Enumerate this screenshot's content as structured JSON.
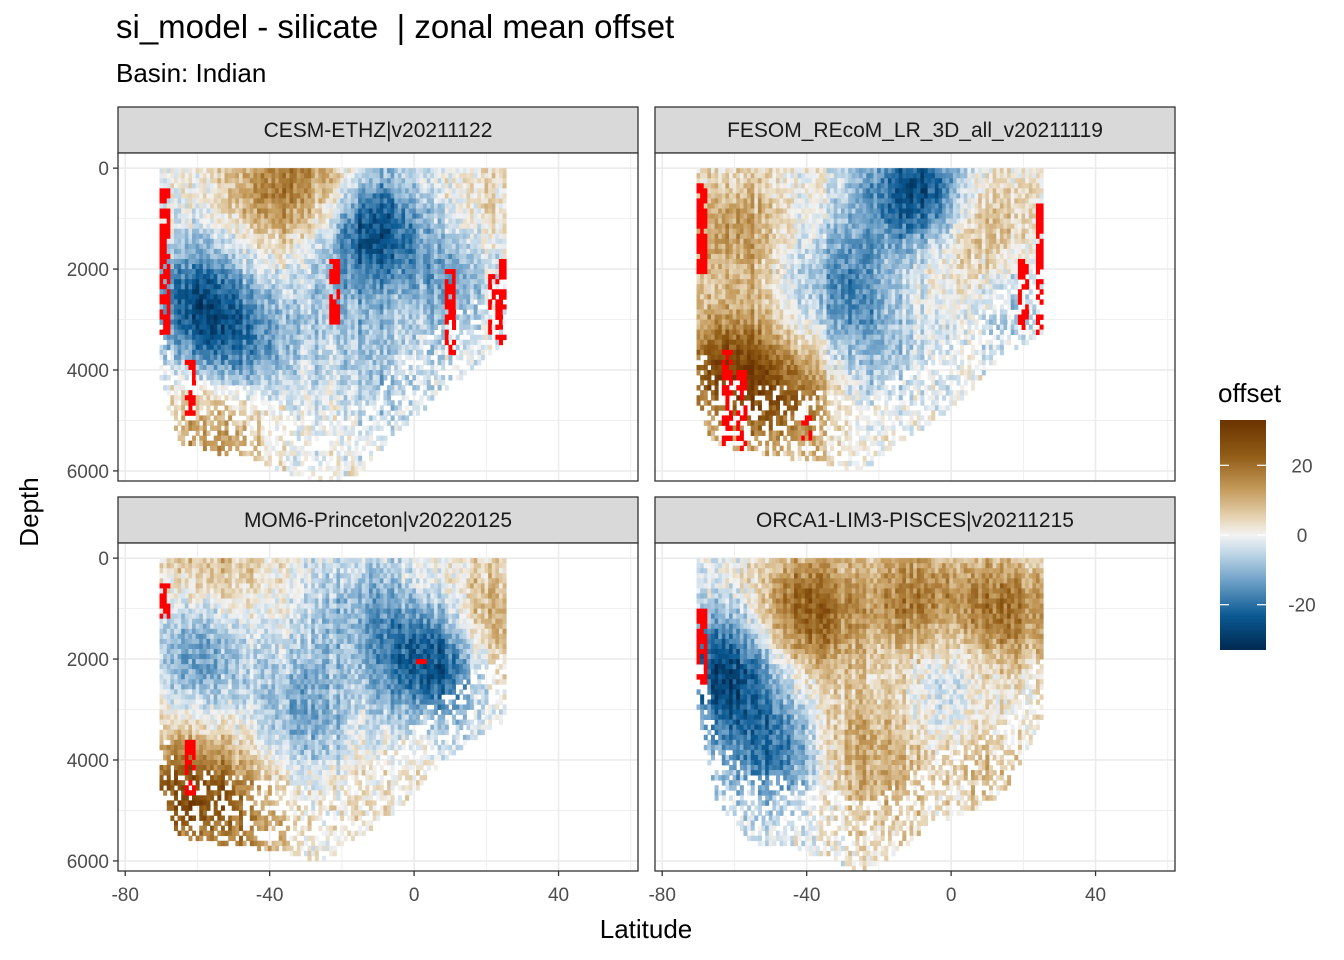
{
  "title": "si_model - silicate  | zonal mean offset",
  "subtitle": "Basin: Indian",
  "chart_data": {
    "type": "heatmap",
    "title": "si_model - silicate  | zonal mean offset",
    "subtitle": "Basin: Indian",
    "xlabel": "Latitude",
    "ylabel": "Depth",
    "xlim": [
      -82,
      62
    ],
    "ylim": [
      6200,
      -300
    ],
    "x_ticks": [
      -80,
      -40,
      0,
      40
    ],
    "y_ticks": [
      0,
      2000,
      4000,
      6000
    ],
    "grid": true,
    "legend": {
      "title": "offset",
      "position": "right",
      "ticks": [
        20,
        0,
        -20
      ],
      "range": [
        -33,
        33
      ],
      "colors": {
        "low": "#00294f",
        "mid": "#f3f3f3",
        "high": "#6b3300",
        "out_of_range": "#ff0000"
      }
    },
    "panels": [
      {
        "name": "CESM-ETHZ|v20211122",
        "lat_range": [
          -70,
          25
        ],
        "bottom_depth": [
          [
            -70,
            4400
          ],
          [
            -65,
            5400
          ],
          [
            -55,
            5600
          ],
          [
            -45,
            5700
          ],
          [
            -35,
            6000
          ],
          [
            -25,
            6200
          ],
          [
            -15,
            6000
          ],
          [
            -5,
            5200
          ],
          [
            5,
            4600
          ],
          [
            15,
            4000
          ],
          [
            25,
            3400
          ]
        ],
        "features": [
          {
            "lat": -40,
            "depth": 300,
            "value": 14
          },
          {
            "lat": -25,
            "depth": 250,
            "value": 12
          },
          {
            "lat": -12,
            "depth": 1100,
            "value": -28
          },
          {
            "lat": -60,
            "depth": 2600,
            "value": -22
          },
          {
            "lat": -48,
            "depth": 3500,
            "value": -15
          },
          {
            "lat": -20,
            "depth": 2800,
            "value": -6
          },
          {
            "lat": 10,
            "depth": 2000,
            "value": -12
          },
          {
            "lat": -55,
            "depth": 5200,
            "value": 16
          },
          {
            "lat": -8,
            "depth": 4200,
            "value": -8
          },
          {
            "lat": 15,
            "depth": 900,
            "value": 6
          }
        ],
        "out_of_range": [
          {
            "lat": -69,
            "depth_range": [
              400,
              3200
            ]
          },
          {
            "lat": -62,
            "depth_range": [
              3800,
              4800
            ]
          },
          {
            "lat": 25,
            "depth_range": [
              1800,
              3400
            ]
          },
          {
            "lat": 22,
            "depth_range": [
              2000,
              3300
            ]
          },
          {
            "lat": 10,
            "depth_range": [
              2000,
              3600
            ]
          },
          {
            "lat": -22,
            "depth_range": [
              1800,
              3000
            ]
          }
        ]
      },
      {
        "name": "FESOM_REcoM_LR_3D_all_v20211119",
        "lat_range": [
          -70,
          25
        ],
        "bottom_depth": [
          [
            -70,
            4800
          ],
          [
            -65,
            5500
          ],
          [
            -55,
            5600
          ],
          [
            -45,
            5700
          ],
          [
            -35,
            5800
          ],
          [
            -25,
            6000
          ],
          [
            -15,
            5400
          ],
          [
            -5,
            5000
          ],
          [
            5,
            4400
          ],
          [
            15,
            3600
          ],
          [
            25,
            3300
          ]
        ],
        "features": [
          {
            "lat": -60,
            "depth": 1200,
            "value": 14
          },
          {
            "lat": -30,
            "depth": 2200,
            "value": -14
          },
          {
            "lat": -10,
            "depth": 500,
            "value": -30
          },
          {
            "lat": 10,
            "depth": 1300,
            "value": 10
          },
          {
            "lat": -5,
            "depth": 1400,
            "value": 6
          },
          {
            "lat": -62,
            "depth": 4000,
            "value": 28
          },
          {
            "lat": -45,
            "depth": 4600,
            "value": 18
          },
          {
            "lat": -20,
            "depth": 3500,
            "value": -8
          },
          {
            "lat": 18,
            "depth": 2500,
            "value": -10
          }
        ],
        "out_of_range": [
          {
            "lat": -62,
            "depth_range": [
              3600,
              5500
            ]
          },
          {
            "lat": -58,
            "depth_range": [
              4000,
              5500
            ]
          },
          {
            "lat": 25,
            "depth_range": [
              700,
              3300
            ]
          },
          {
            "lat": 20,
            "depth_range": [
              1800,
              3100
            ]
          },
          {
            "lat": -69,
            "depth_range": [
              300,
              2000
            ]
          },
          {
            "lat": -40,
            "depth_range": [
              4800,
              5400
            ]
          }
        ]
      },
      {
        "name": "MOM6-Princeton|v20220125",
        "lat_range": [
          -70,
          25
        ],
        "bottom_depth": [
          [
            -70,
            4600
          ],
          [
            -65,
            5500
          ],
          [
            -55,
            5600
          ],
          [
            -45,
            5700
          ],
          [
            -35,
            5800
          ],
          [
            -25,
            6000
          ],
          [
            -15,
            5500
          ],
          [
            -5,
            5000
          ],
          [
            5,
            4200
          ],
          [
            15,
            3600
          ],
          [
            25,
            3200
          ]
        ],
        "features": [
          {
            "lat": -55,
            "depth": 100,
            "value": 10
          },
          {
            "lat": 5,
            "depth": 2000,
            "value": -28
          },
          {
            "lat": 20,
            "depth": 1200,
            "value": 14
          },
          {
            "lat": -60,
            "depth": 1800,
            "value": -14
          },
          {
            "lat": -62,
            "depth": 4600,
            "value": 26
          },
          {
            "lat": -30,
            "depth": 3000,
            "value": -12
          },
          {
            "lat": -15,
            "depth": 1000,
            "value": -10
          },
          {
            "lat": -45,
            "depth": 5200,
            "value": 12
          },
          {
            "lat": -10,
            "depth": 4600,
            "value": 4
          }
        ],
        "out_of_range": [
          {
            "lat": -69,
            "depth_range": [
              500,
              1100
            ]
          },
          {
            "lat": -62,
            "depth_range": [
              3600,
              4600
            ]
          },
          {
            "lat": 2,
            "depth_range": [
              1950,
              2050
            ]
          }
        ]
      },
      {
        "name": "ORCA1-LIM3-PISCES|v20211215",
        "lat_range": [
          -70,
          25
        ],
        "bottom_depth": [
          [
            -70,
            3000
          ],
          [
            -65,
            4800
          ],
          [
            -55,
            5600
          ],
          [
            -45,
            5700
          ],
          [
            -35,
            5900
          ],
          [
            -25,
            6200
          ],
          [
            -15,
            5800
          ],
          [
            -5,
            5200
          ],
          [
            5,
            5000
          ],
          [
            15,
            4600
          ],
          [
            25,
            3200
          ]
        ],
        "features": [
          {
            "lat": -40,
            "depth": 1000,
            "value": 24
          },
          {
            "lat": -10,
            "depth": 800,
            "value": 18
          },
          {
            "lat": 15,
            "depth": 1000,
            "value": 20
          },
          {
            "lat": -62,
            "depth": 2200,
            "value": -26
          },
          {
            "lat": -50,
            "depth": 3800,
            "value": -18
          },
          {
            "lat": -25,
            "depth": 3600,
            "value": 10
          },
          {
            "lat": 10,
            "depth": 4000,
            "value": 8
          },
          {
            "lat": 0,
            "depth": 2200,
            "value": -6
          },
          {
            "lat": -15,
            "depth": 4800,
            "value": 6
          }
        ],
        "out_of_range": [
          {
            "lat": -69,
            "depth_range": [
              1000,
              2400
            ]
          }
        ]
      }
    ]
  }
}
